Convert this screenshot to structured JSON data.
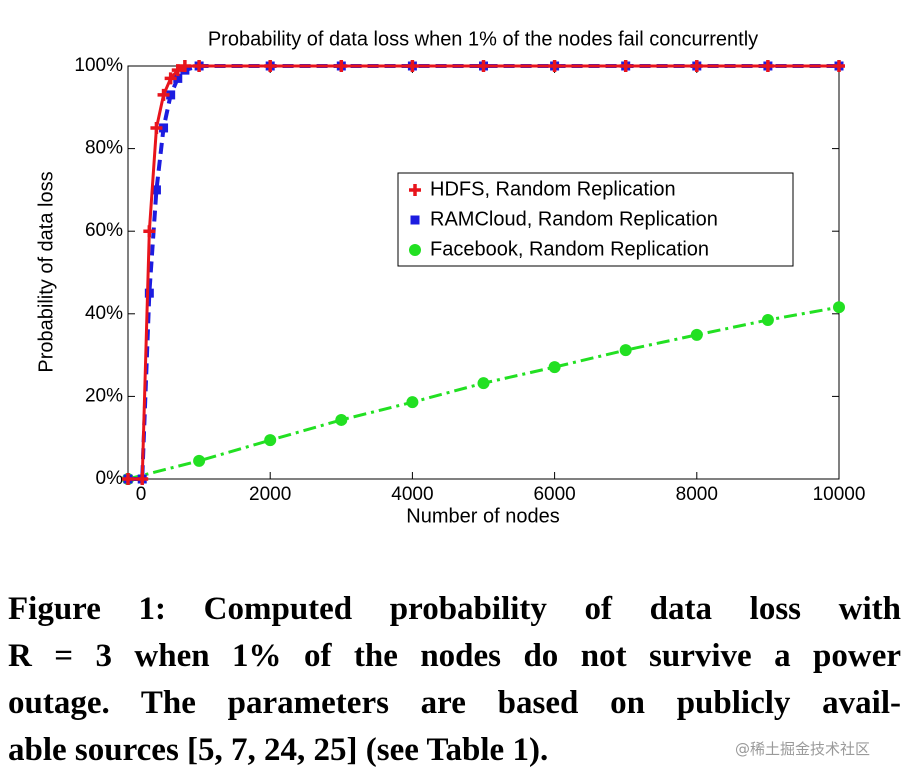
{
  "chart_data": {
    "type": "line",
    "title": "Probability of data loss when 1% of the nodes fail concurrently",
    "xlabel": "Number of nodes",
    "ylabel": "Probability of data loss",
    "xlim": [
      0,
      10000
    ],
    "xticks": [
      0,
      2000,
      4000,
      6000,
      8000,
      10000
    ],
    "ylim": [
      0,
      100
    ],
    "yticks": [
      {
        "value": 0,
        "label": "0%"
      },
      {
        "value": 20,
        "label": "20%"
      },
      {
        "value": 40,
        "label": "40%"
      },
      {
        "value": 60,
        "label": "60%"
      },
      {
        "value": 80,
        "label": "80%"
      },
      {
        "value": 100,
        "label": "100%"
      }
    ],
    "legend": "upper right",
    "series": [
      {
        "name": "HDFS, Random Replication",
        "color": "#e8141c",
        "marker": "plus",
        "linestyle": "solid",
        "x": [
          0,
          200,
          300,
          400,
          500,
          600,
          700,
          800,
          1000,
          2000,
          3000,
          4000,
          5000,
          6000,
          7000,
          8000,
          9000,
          10000
        ],
        "values": [
          0,
          0,
          60,
          85,
          93,
          97,
          99,
          100,
          100,
          100,
          100,
          100,
          100,
          100,
          100,
          100,
          100,
          100
        ]
      },
      {
        "name": "RAMCloud, Random Replication",
        "color": "#1c1ce0",
        "marker": "square",
        "linestyle": "dashed",
        "x": [
          0,
          200,
          300,
          400,
          500,
          600,
          700,
          800,
          1000,
          2000,
          3000,
          4000,
          5000,
          6000,
          7000,
          8000,
          9000,
          10000
        ],
        "values": [
          0,
          0,
          45,
          70,
          85,
          93,
          97,
          99,
          100,
          100,
          100,
          100,
          100,
          100,
          100,
          100,
          100,
          100
        ]
      },
      {
        "name": "Facebook, Random Replication",
        "color": "#22e022",
        "marker": "circle",
        "linestyle": "dashdot",
        "x": [
          0,
          1000,
          2000,
          3000,
          4000,
          5000,
          6000,
          7000,
          8000,
          9000,
          10000
        ],
        "values": [
          0,
          4.4,
          9.4,
          14.3,
          18.6,
          23.2,
          27.1,
          31.2,
          34.9,
          38.5,
          41.6
        ]
      }
    ]
  },
  "caption": {
    "lines": [
      "Figure 1:  Computed probability of data loss with",
      "R = 3 when 1% of the nodes do not survive a power",
      "outage. The parameters are based on publicly avail-",
      "able sources [5, 7, 24, 25] (see Table 1)."
    ]
  },
  "watermark": "@稀土掘金技术社区"
}
